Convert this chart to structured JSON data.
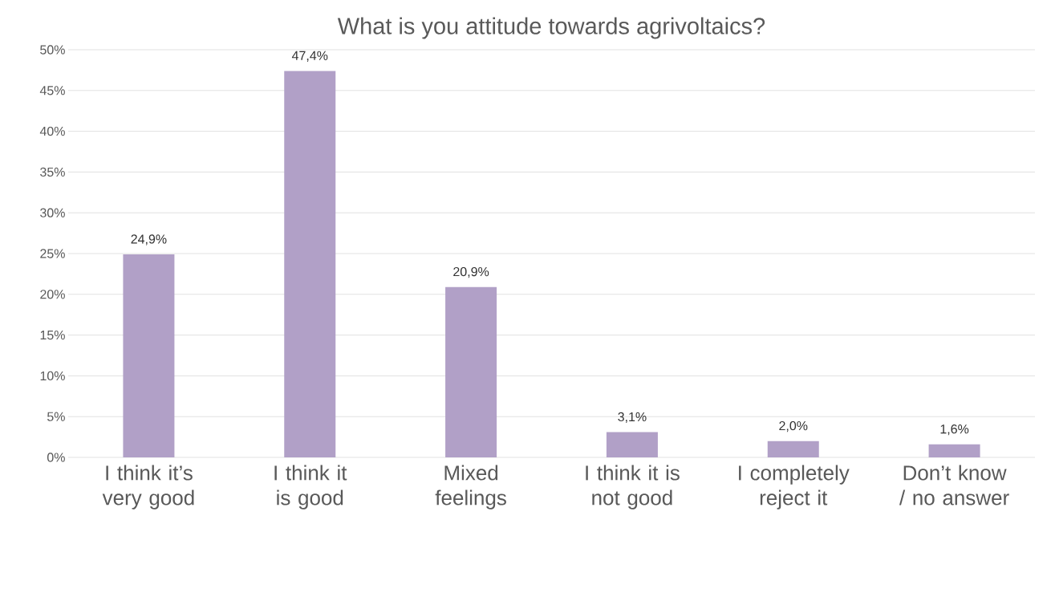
{
  "chart_data": {
    "type": "bar",
    "title": "What is you attitude towards agrivoltaics?",
    "categories": [
      "I think it’s very good",
      "I think it is good",
      "Mixed feelings",
      "I think it is not good",
      "I completely reject it",
      "Don’t know / no answer"
    ],
    "values": [
      24.9,
      47.4,
      20.9,
      3.1,
      2.0,
      1.6
    ],
    "value_labels": [
      "24,9%",
      "47,4%",
      "20,9%",
      "3,1%",
      "2,0%",
      "1,6%"
    ],
    "color": "#b1a0c7",
    "ylim": [
      0,
      50
    ],
    "yticks": [
      {
        "value": 0,
        "label": "0%"
      },
      {
        "value": 5,
        "label": "5%"
      },
      {
        "value": 10,
        "label": "10%"
      },
      {
        "value": 15,
        "label": "15%"
      },
      {
        "value": 20,
        "label": "20%"
      },
      {
        "value": 25,
        "label": "25%"
      },
      {
        "value": 30,
        "label": "30%"
      },
      {
        "value": 35,
        "label": "35%"
      },
      {
        "value": 40,
        "label": "40%"
      },
      {
        "value": 45,
        "label": "45%"
      },
      {
        "value": 50,
        "label": "50%"
      }
    ],
    "grid": "y"
  }
}
